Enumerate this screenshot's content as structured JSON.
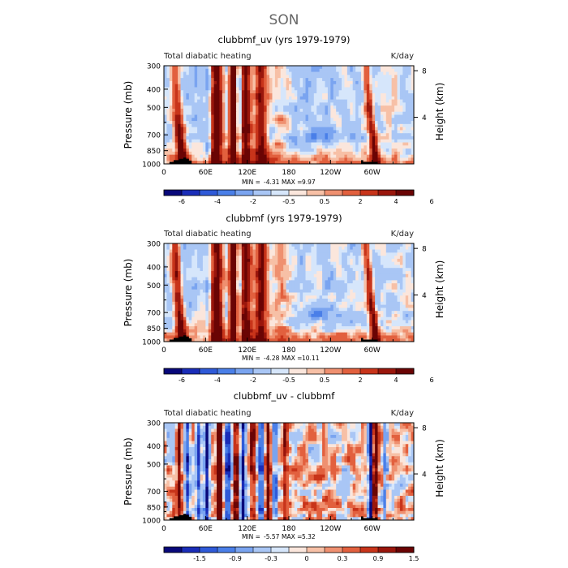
{
  "figure": {
    "title": "SON"
  },
  "colors": {
    "levels": [
      "#08087a",
      "#1a2db8",
      "#2f5ad8",
      "#4a7fe8",
      "#7aa4f0",
      "#a9c6f5",
      "#d6e6fb",
      "#fbe6dc",
      "#f7c0a6",
      "#ef9070",
      "#e2603e",
      "#c8341a",
      "#9a160c",
      "#6a0404"
    ],
    "ground": "#000000",
    "frame": "#000000"
  },
  "chart_data": [
    {
      "type": "heatmap",
      "title": "clubbmf_uv (yrs 1979-1979)",
      "left_label": "Total diabatic heating",
      "right_label": "K/day",
      "ylabel": "Pressure (mb)",
      "ylabel_right": "Height (km)",
      "y_ticks": [
        "300",
        "400",
        "500",
        "700",
        "850",
        "1000"
      ],
      "y_tick_values": [
        300,
        400,
        500,
        700,
        850,
        1000
      ],
      "ylim": [
        1000,
        300
      ],
      "y_right_ticks": [
        "8",
        "4"
      ],
      "y_right_tick_values": [
        8,
        4
      ],
      "x_ticks": [
        "0",
        "60E",
        "120E",
        "180",
        "120W",
        "60W"
      ],
      "x_tick_values": [
        0,
        60,
        120,
        180,
        240,
        300
      ],
      "xlim": [
        0,
        360
      ],
      "stats": {
        "min_label": "MIN =",
        "min": "-4.31",
        "max_label": "MAX =",
        "max": "9.97"
      },
      "colorbar_levels": [
        -7,
        -6,
        -5,
        -4,
        -3,
        -2,
        -1,
        -0.5,
        0,
        0.5,
        1,
        2,
        3,
        4,
        5,
        6,
        7
      ],
      "colorbar_labels": [
        "-6",
        "-4",
        "-2",
        "-0.5",
        "0.5",
        "2",
        "4",
        "6"
      ],
      "colorbar_label_values": [
        -6,
        -4,
        -2,
        -0.5,
        0.5,
        2,
        4,
        6
      ],
      "pattern": "full"
    },
    {
      "type": "heatmap",
      "title": "clubbmf (yrs 1979-1979)",
      "left_label": "Total diabatic heating",
      "right_label": "K/day",
      "ylabel": "Pressure (mb)",
      "ylabel_right": "Height (km)",
      "y_ticks": [
        "300",
        "400",
        "500",
        "700",
        "850",
        "1000"
      ],
      "y_tick_values": [
        300,
        400,
        500,
        700,
        850,
        1000
      ],
      "ylim": [
        1000,
        300
      ],
      "y_right_ticks": [
        "8",
        "4"
      ],
      "y_right_tick_values": [
        8,
        4
      ],
      "x_ticks": [
        "0",
        "60E",
        "120E",
        "180",
        "120W",
        "60W"
      ],
      "x_tick_values": [
        0,
        60,
        120,
        180,
        240,
        300
      ],
      "xlim": [
        0,
        360
      ],
      "stats": {
        "min_label": "MIN =",
        "min": "-4.28",
        "max_label": "MAX =",
        "max": "10.11"
      },
      "colorbar_levels": [
        -7,
        -6,
        -5,
        -4,
        -3,
        -2,
        -1,
        -0.5,
        0,
        0.5,
        1,
        2,
        3,
        4,
        5,
        6,
        7
      ],
      "colorbar_labels": [
        "-6",
        "-4",
        "-2",
        "-0.5",
        "0.5",
        "2",
        "4",
        "6"
      ],
      "colorbar_label_values": [
        -6,
        -4,
        -2,
        -0.5,
        0.5,
        2,
        4,
        6
      ],
      "pattern": "full"
    },
    {
      "type": "heatmap",
      "title": "clubbmf_uv - clubbmf",
      "left_label": "Total diabatic heating",
      "right_label": "K/day",
      "ylabel": "Pressure (mb)",
      "ylabel_right": "Height (km)",
      "y_ticks": [
        "300",
        "400",
        "500",
        "700",
        "850",
        "1000"
      ],
      "y_tick_values": [
        300,
        400,
        500,
        700,
        850,
        1000
      ],
      "ylim": [
        1000,
        300
      ],
      "y_right_ticks": [
        "8",
        "4"
      ],
      "y_right_tick_values": [
        8,
        4
      ],
      "x_ticks": [
        "0",
        "60E",
        "120E",
        "180",
        "120W",
        "60W"
      ],
      "x_tick_values": [
        0,
        60,
        120,
        180,
        240,
        300
      ],
      "xlim": [
        0,
        360
      ],
      "stats": {
        "min_label": "MIN =",
        "min": "-5.57",
        "max_label": "MAX =",
        "max": "5.32"
      },
      "colorbar_levels": [
        -2.1,
        -1.8,
        -1.5,
        -1.2,
        -0.9,
        -0.6,
        -0.3,
        -0.15,
        0,
        0.15,
        0.3,
        0.6,
        0.9,
        1.2,
        1.5,
        1.8,
        2.1
      ],
      "colorbar_labels": [
        "-1.5",
        "-0.9",
        "-0.3",
        "0",
        "0.3",
        "0.9",
        "1.5"
      ],
      "colorbar_label_values": [
        -1.5,
        -0.9,
        -0.3,
        0,
        0.3,
        0.9,
        1.5
      ],
      "pattern": "diff"
    }
  ]
}
